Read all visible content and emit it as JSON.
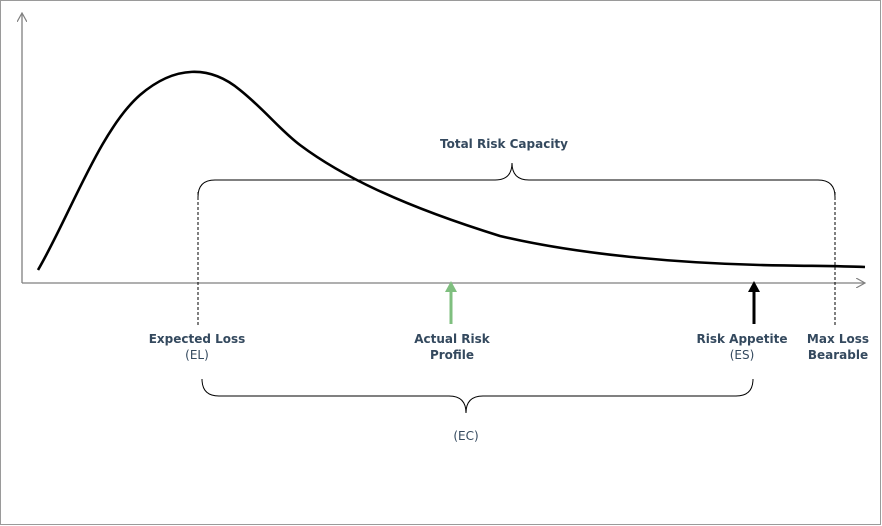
{
  "diagram": {
    "title": "Total Risk Capacity",
    "labels": {
      "expected_loss": "Expected Loss",
      "expected_loss_abbr": "(EL)",
      "actual_risk_line1": "Actual Risk",
      "actual_risk_line2": "Profile",
      "risk_appetite": "Risk Appetite",
      "risk_appetite_abbr": "(ES)",
      "max_loss_line1": "Max Loss",
      "max_loss_line2": "Bearable",
      "economic_capital": "(EC)"
    },
    "colors": {
      "curve": "#000000",
      "axis": "#7f7f7f",
      "label_text": "#34495e",
      "actual_risk_arrow": "#7fbf7f",
      "risk_appetite_arrow": "#000000"
    }
  }
}
